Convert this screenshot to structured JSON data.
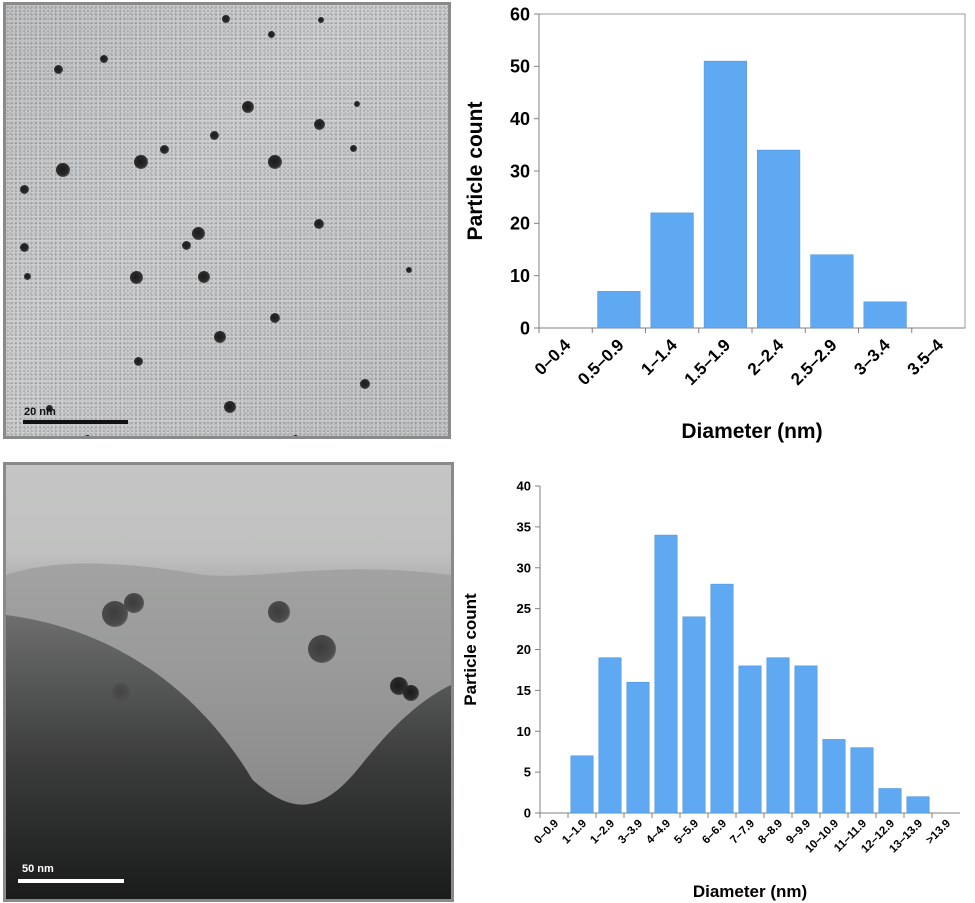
{
  "panels": {
    "top_image": {
      "scale_label": "20 nm"
    },
    "bottom_image": {
      "scale_label": "50 nm"
    }
  },
  "colors": {
    "bar": "#5fa8f2",
    "bar_edge": "#4a8fd6",
    "axis": "#808080"
  },
  "chart_data": [
    {
      "type": "bar",
      "categories": [
        "0–0.4",
        "0.5–0.9",
        "1–1.4",
        "1.5–1.9",
        "2–2.4",
        "2.5–2.9",
        "3–3.4",
        "3.5–4"
      ],
      "values": [
        0,
        7,
        22,
        51,
        34,
        14,
        5,
        0
      ],
      "xlabel": "Diameter (nm)",
      "ylabel": "Particle count",
      "ylim": [
        0,
        60
      ],
      "yticks": [
        0,
        10,
        20,
        30,
        40,
        50,
        60
      ],
      "grid": false
    },
    {
      "type": "bar",
      "categories": [
        "0–0.9",
        "1–1.9",
        "1–2.9",
        "3–3.9",
        "4–4.9",
        "5–5.9",
        "6–6.9",
        "7–7.9",
        "8–8.9",
        "9–9.9",
        "10–10.9",
        "11–11.9",
        "12–12.9",
        "13–13.9",
        ">13.9"
      ],
      "values": [
        0,
        7,
        19,
        16,
        34,
        24,
        28,
        18,
        19,
        18,
        9,
        8,
        3,
        2,
        0
      ],
      "xlabel": "Diameter (nm)",
      "ylabel": "Particle count",
      "ylim": [
        0,
        40
      ],
      "yticks": [
        0,
        5,
        10,
        15,
        20,
        25,
        30,
        35,
        40
      ],
      "grid": false
    }
  ]
}
